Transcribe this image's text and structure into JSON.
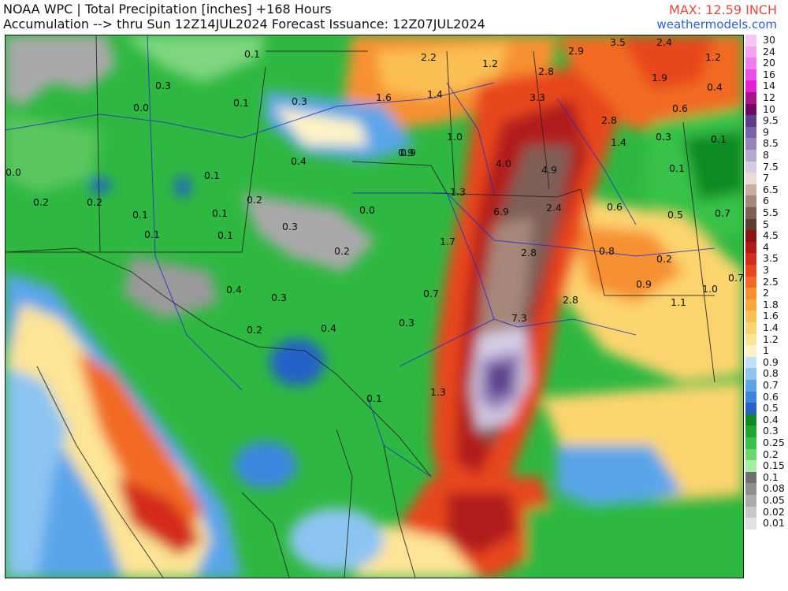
{
  "header": {
    "title_line1": "NOAA WPC | Total Precipitation [inches] +168 Hours",
    "title_line2": "Accumulation --> thru Sun 12Z14JUL2024   Forecast Issuance: 12Z07JUL2024",
    "max_label": "MAX: 12.59 INCH",
    "site": "weathermodels.com"
  },
  "legend": {
    "levels": [
      {
        "label": "30",
        "color": "#f7c6f7"
      },
      {
        "label": "24",
        "color": "#f5a3f2"
      },
      {
        "label": "20",
        "color": "#f07ded"
      },
      {
        "label": "16",
        "color": "#ec4fe8"
      },
      {
        "label": "14",
        "color": "#e61fd9"
      },
      {
        "label": "12",
        "color": "#a8148c"
      },
      {
        "label": "10",
        "color": "#6d0a64"
      },
      {
        "label": "9.5",
        "color": "#5c3d8c"
      },
      {
        "label": "9",
        "color": "#7a62a6"
      },
      {
        "label": "8.5",
        "color": "#9484ba"
      },
      {
        "label": "8",
        "color": "#b5a9d2"
      },
      {
        "label": "7.5",
        "color": "#d4cce5"
      },
      {
        "label": "7",
        "color": "#eadbd4"
      },
      {
        "label": "6.5",
        "color": "#c9ada1"
      },
      {
        "label": "6",
        "color": "#a6877a"
      },
      {
        "label": "5.5",
        "color": "#7e5f55"
      },
      {
        "label": "5",
        "color": "#5c3b33"
      },
      {
        "label": "4.5",
        "color": "#8a1414"
      },
      {
        "label": "4",
        "color": "#b21a1a"
      },
      {
        "label": "3.5",
        "color": "#d32c1b"
      },
      {
        "label": "3",
        "color": "#e8461f"
      },
      {
        "label": "2.5",
        "color": "#f26a24"
      },
      {
        "label": "2",
        "color": "#f79030"
      },
      {
        "label": "1.8",
        "color": "#faa83c"
      },
      {
        "label": "1.6",
        "color": "#fbbf52"
      },
      {
        "label": "1.4",
        "color": "#fcd46e"
      },
      {
        "label": "1.2",
        "color": "#fde496"
      },
      {
        "label": "1",
        "color": "#fdf3c6"
      },
      {
        "label": "0.9",
        "color": "#bfe2f9"
      },
      {
        "label": "0.8",
        "color": "#8cc5f2"
      },
      {
        "label": "0.7",
        "color": "#5aa5ea"
      },
      {
        "label": "0.6",
        "color": "#3a86de"
      },
      {
        "label": "0.5",
        "color": "#2462c8"
      },
      {
        "label": "0.4",
        "color": "#0f8a22"
      },
      {
        "label": "0.3",
        "color": "#1ea832"
      },
      {
        "label": "0.25",
        "color": "#38c24a"
      },
      {
        "label": "0.2",
        "color": "#6bd86e"
      },
      {
        "label": "0.15",
        "color": "#a6eca4"
      },
      {
        "label": "0.1",
        "color": "#707070"
      },
      {
        "label": "0.08",
        "color": "#8e8e8e"
      },
      {
        "label": "0.05",
        "color": "#ababab"
      },
      {
        "label": "0.02",
        "color": "#c8c8c8"
      },
      {
        "label": "0.01",
        "color": "#e2e2e2"
      }
    ]
  },
  "map_labels": [
    "0.1",
    "0.3",
    "0.0",
    "0.1",
    "0.3",
    "0.0",
    "0.2",
    "0.1",
    "0.1",
    "0.2",
    "0.1",
    "0.2",
    "0.1",
    "0.1",
    "0.3",
    "0.4",
    "0.2",
    "0.4",
    "0.3",
    "0.2",
    "0.4",
    "0.0",
    "0.7",
    "0.3",
    "1.3",
    "0.1",
    "0.9",
    "2.2",
    "1.2",
    "1.6",
    "1.4",
    "1.0",
    "0.9",
    "1.3",
    "1.7",
    "2.9",
    "3.5",
    "2.4",
    "1.2",
    "2.8",
    "1.9",
    "3.3",
    "0.4",
    "2.8",
    "0.6",
    "1.4",
    "0.3",
    "0.1",
    "4.0",
    "4.9",
    "0.1",
    "6.9",
    "2.4",
    "0.6",
    "0.5",
    "0.7",
    "2.8",
    "0.8",
    "0.2",
    "2.8",
    "0.9",
    "1.0",
    "1.1",
    "0.7",
    "7.3"
  ]
}
